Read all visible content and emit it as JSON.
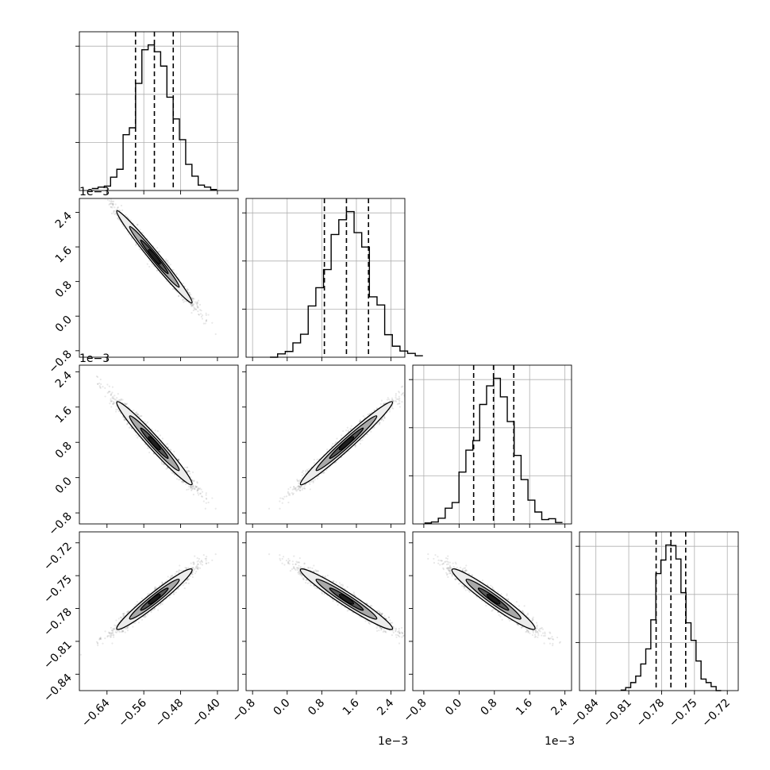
{
  "chart_data": {
    "type": "corner",
    "n_params": 4,
    "params": [
      {
        "range": [
          -0.7,
          -0.355
        ],
        "ticks": [
          -0.64,
          -0.56,
          -0.48,
          -0.4
        ],
        "tick_labels": [
          "−0.64",
          "−0.56",
          "−0.48",
          "−0.40"
        ],
        "offset": "",
        "mean": -0.537,
        "std": 0.04,
        "quantiles": [
          -0.578,
          -0.537,
          -0.496
        ]
      },
      {
        "range": [
          -0.95,
          2.72
        ],
        "ticks": [
          -0.8,
          0.0,
          0.8,
          1.6,
          2.4
        ],
        "tick_labels": [
          "−0.8",
          "0.0",
          "0.8",
          "1.6",
          "2.4"
        ],
        "offset": "1e−3",
        "mean": 1.37,
        "std": 0.52,
        "quantiles": [
          0.86,
          1.37,
          1.88
        ]
      },
      {
        "range": [
          -1.05,
          2.55
        ],
        "ticks": [
          -0.8,
          0.0,
          0.8,
          1.6,
          2.4
        ],
        "tick_labels": [
          "−0.8",
          "0.0",
          "0.8",
          "1.6",
          "2.4"
        ],
        "offset": "1e−3",
        "mean": 0.78,
        "std": 0.46,
        "quantiles": [
          0.33,
          0.78,
          1.24
        ]
      },
      {
        "range": [
          -0.855,
          -0.71
        ],
        "ticks": [
          -0.84,
          -0.81,
          -0.78,
          -0.75,
          -0.72
        ],
        "tick_labels": [
          "−0.84",
          "−0.81",
          "−0.78",
          "−0.75",
          "−0.72"
        ],
        "offset": "",
        "mean": -0.7715,
        "std": 0.0135,
        "quantiles": [
          -0.785,
          -0.7715,
          -0.758
        ]
      }
    ],
    "correlations": [
      [
        1.0,
        -0.985,
        -0.975,
        0.965
      ],
      [
        -0.985,
        1.0,
        0.98,
        -0.965
      ],
      [
        -0.975,
        0.98,
        1.0,
        -0.96
      ],
      [
        0.965,
        -0.965,
        -0.96,
        1.0
      ]
    ],
    "histogram_bins": 20,
    "quantile_levels": [
      0.16,
      0.5,
      0.84
    ],
    "grid": true
  }
}
